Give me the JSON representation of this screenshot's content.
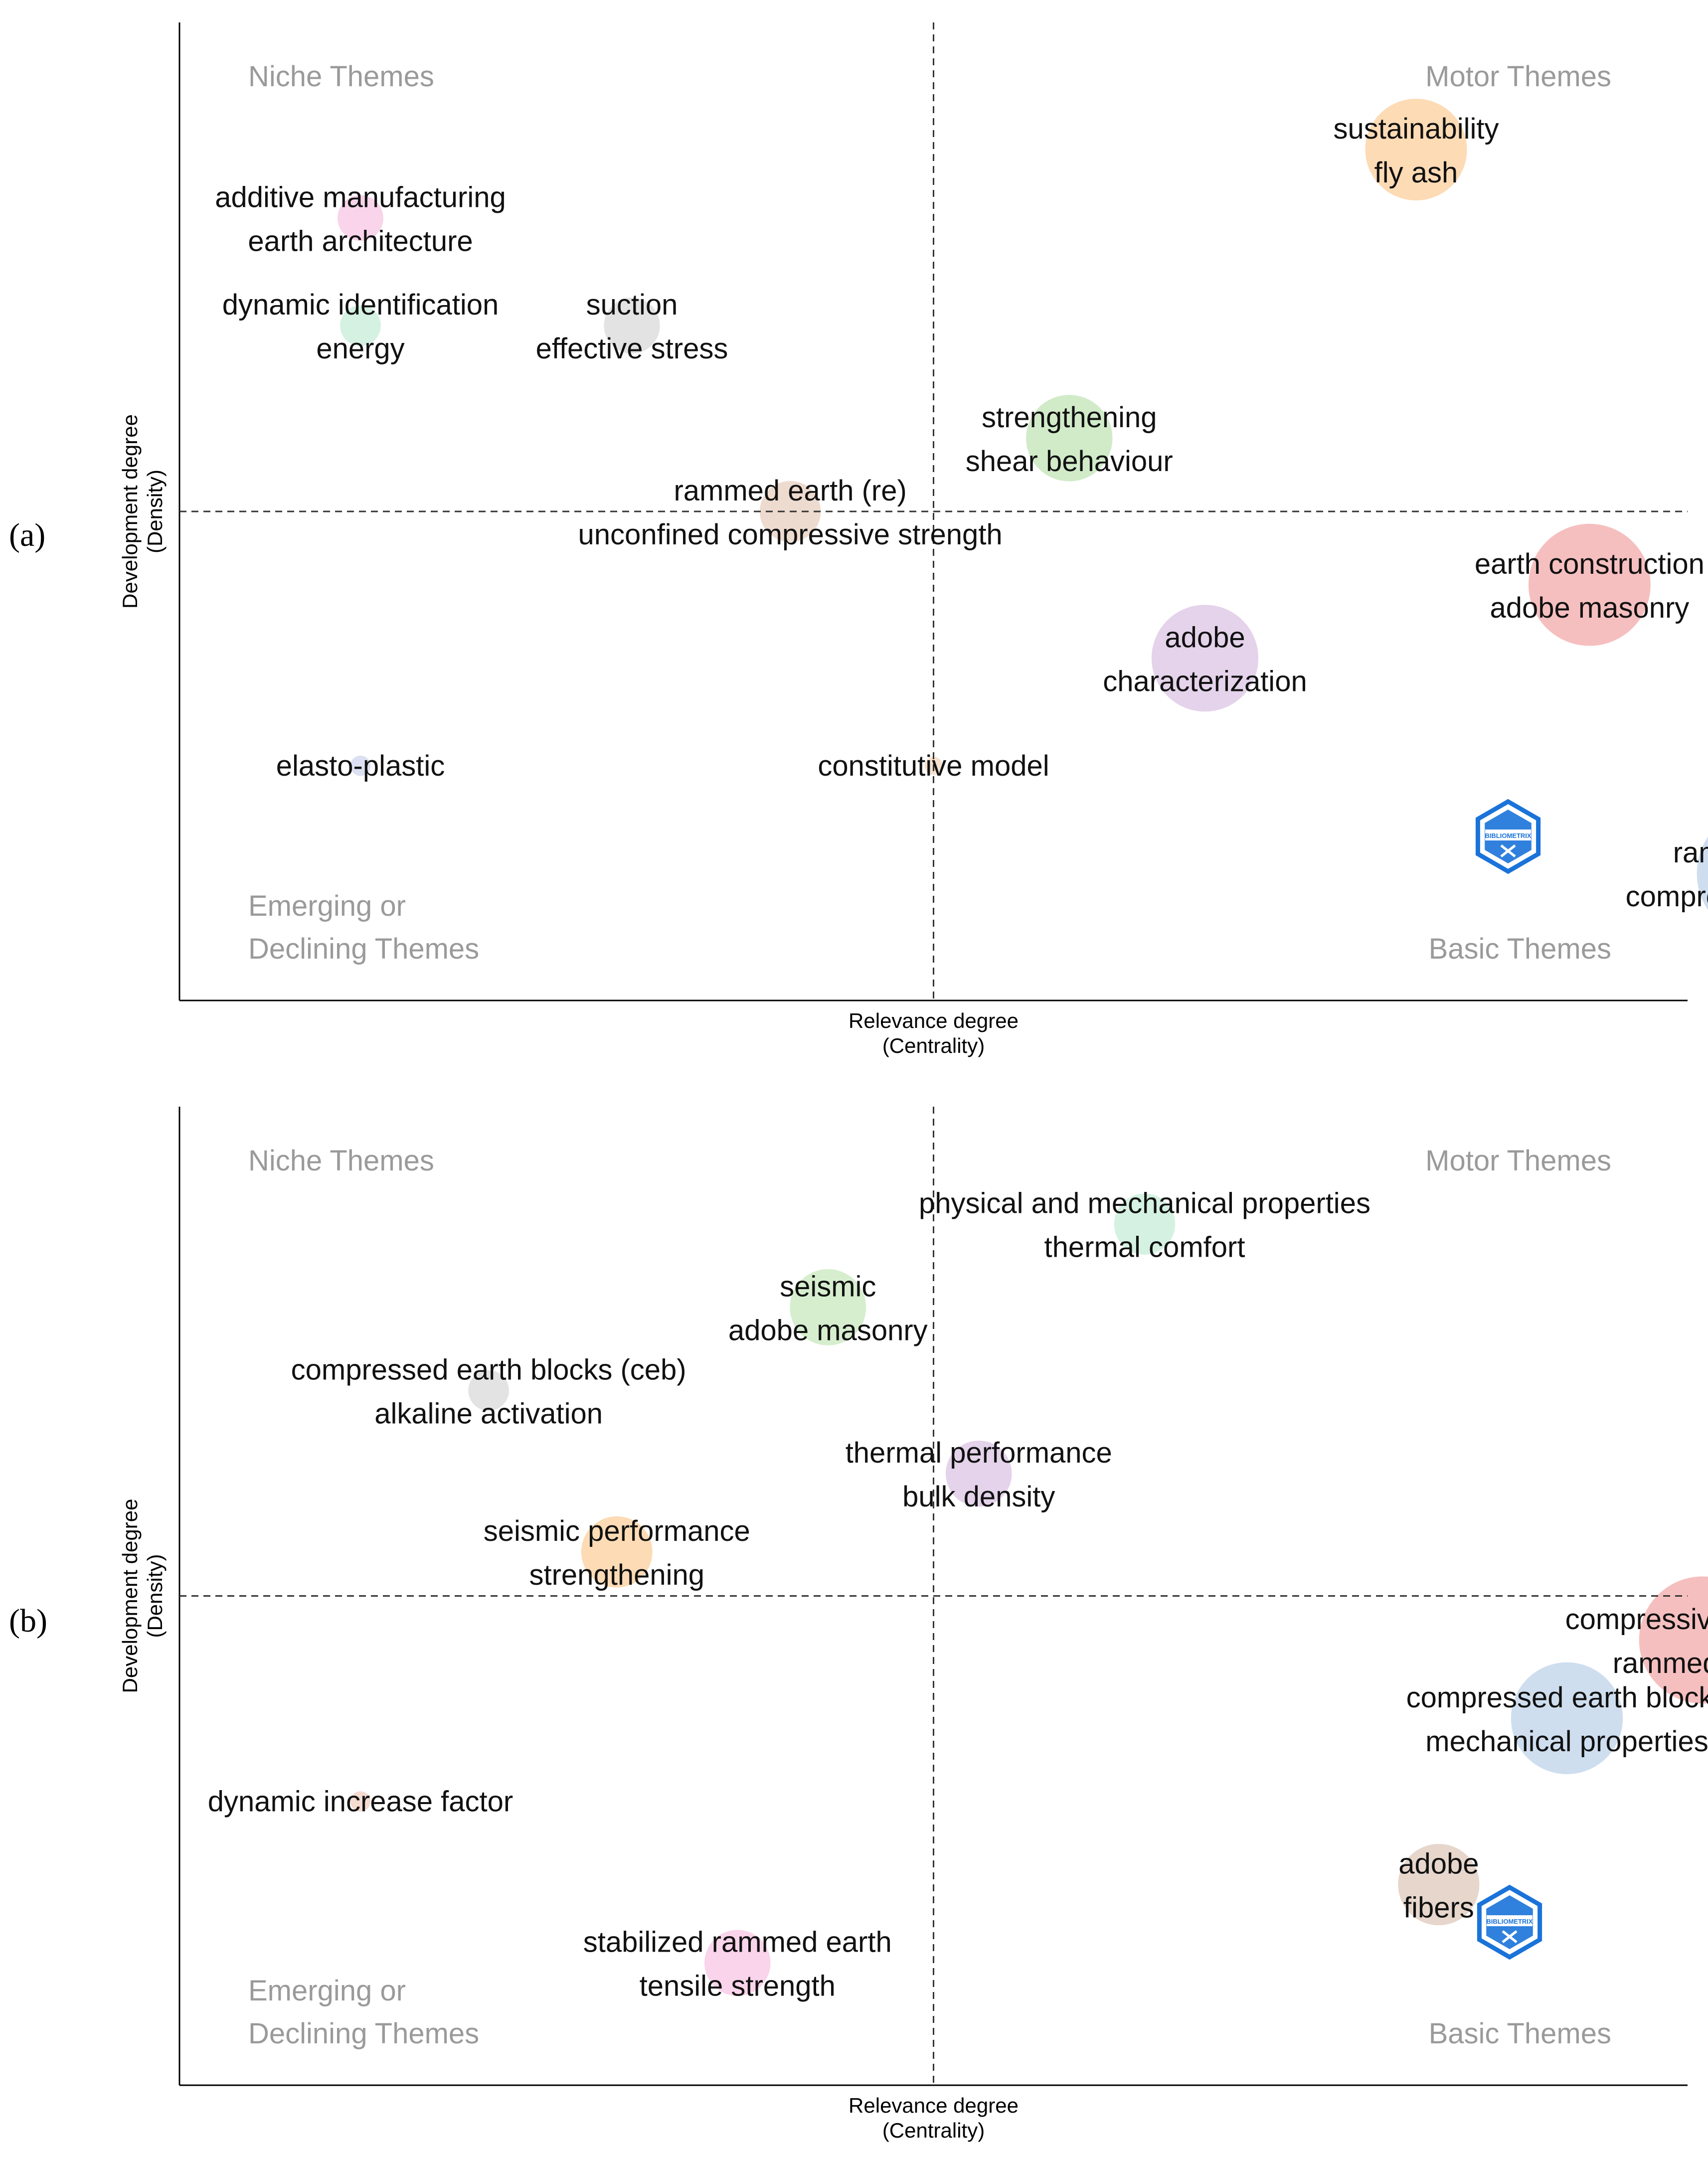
{
  "chart_data": [
    {
      "type": "scatter",
      "panel_label": "(a)",
      "xlabel": [
        "Relevance degree",
        "(Centrality)"
      ],
      "ylabel": [
        "Development degree",
        "(Density)"
      ],
      "quadrant_labels": {
        "top_left": [
          "Niche Themes"
        ],
        "top_right": [
          "Motor Themes"
        ],
        "bottom_left": [
          "Emerging or",
          "Declining Themes"
        ],
        "bottom_right": [
          "Basic Themes"
        ]
      },
      "clusters": [
        {
          "name": "sustainability",
          "labels": [
            "sustainability",
            "fly ash"
          ],
          "centrality": 1.64,
          "density": 0.74,
          "size": 2.0,
          "color": "#fdd5a8"
        },
        {
          "name": "additive manufacturing",
          "labels": [
            "additive manufacturing",
            "earth architecture"
          ],
          "centrality": 0.24,
          "density": 0.6,
          "size": 0.9,
          "color": "#f8cde6"
        },
        {
          "name": "dynamic identification",
          "labels": [
            "dynamic identification",
            "energy"
          ],
          "centrality": 0.24,
          "density": 0.38,
          "size": 0.8,
          "color": "#cdeedd"
        },
        {
          "name": "suction",
          "labels": [
            "suction",
            "effective stress"
          ],
          "centrality": 0.6,
          "density": 0.38,
          "size": 1.1,
          "color": "#dedede"
        },
        {
          "name": "strengthening",
          "labels": [
            "strengthening",
            "shear behaviour"
          ],
          "centrality": 1.18,
          "density": 0.15,
          "size": 1.7,
          "color": "#c9e7bf"
        },
        {
          "name": "rammed earth (re)",
          "labels": [
            "rammed earth (re)",
            "unconfined compressive strength"
          ],
          "centrality": 0.81,
          "density": 0.0,
          "size": 1.2,
          "color": "#ebd5c7"
        },
        {
          "name": "earth construction",
          "labels": [
            "earth construction",
            "adobe masonry"
          ],
          "centrality": 1.87,
          "density": -0.15,
          "size": 2.4,
          "color": "#f4b4b4"
        },
        {
          "name": "adobe",
          "labels": [
            "adobe",
            "characterization"
          ],
          "centrality": 1.36,
          "density": -0.3,
          "size": 2.1,
          "color": "#dfcbe6"
        },
        {
          "name": "elasto-plastic",
          "labels": [
            "elasto-plastic"
          ],
          "centrality": 0.24,
          "density": -0.52,
          "size": 0.4,
          "color": "#d7daf0"
        },
        {
          "name": "constitutive model",
          "labels": [
            "constitutive model"
          ],
          "centrality": 1.0,
          "density": -0.52,
          "size": 0.3,
          "color": "#f5dcc6"
        },
        {
          "name": "rammed earth",
          "labels": [
            "rammed earth",
            "compressive strength"
          ],
          "centrality": 2.1,
          "density": -0.74,
          "size": 2.6,
          "color": "#c6d8ec"
        }
      ]
    },
    {
      "type": "scatter",
      "panel_label": "(b)",
      "xlabel": [
        "Relevance degree",
        "(Centrality)"
      ],
      "ylabel": [
        "Development degree",
        "(Density)"
      ],
      "quadrant_labels": {
        "top_left": [
          "Niche Themes"
        ],
        "top_right": [
          "Motor Themes"
        ],
        "bottom_left": [
          "Emerging or",
          "Declining Themes"
        ],
        "bottom_right": [
          "Basic Themes"
        ]
      },
      "clusters": [
        {
          "name": "physical and mechanical properties",
          "labels": [
            "physical and mechanical properties",
            "thermal comfort"
          ],
          "centrality": 1.28,
          "density": 0.76,
          "size": 1.2,
          "color": "#cdeedd"
        },
        {
          "name": "seismic",
          "labels": [
            "seismic",
            "adobe masonry"
          ],
          "centrality": 0.86,
          "density": 0.59,
          "size": 1.5,
          "color": "#cfebc6"
        },
        {
          "name": "compressed earth blocks (ceb)",
          "labels": [
            "compressed earth blocks (ceb)",
            "alkaline activation"
          ],
          "centrality": 0.41,
          "density": 0.42,
          "size": 0.8,
          "color": "#dedede"
        },
        {
          "name": "thermal performance",
          "labels": [
            "thermal performance",
            "bulk density"
          ],
          "centrality": 1.06,
          "density": 0.25,
          "size": 1.3,
          "color": "#dfcbe6"
        },
        {
          "name": "seismic performance",
          "labels": [
            "seismic performance",
            "strengthening"
          ],
          "centrality": 0.58,
          "density": 0.09,
          "size": 1.4,
          "color": "#fdd5a8"
        },
        {
          "name": "compressive strength",
          "labels": [
            "compressive strength",
            "rammed earth"
          ],
          "centrality": 2.02,
          "density": -0.09,
          "size": 2.5,
          "color": "#f4b4b4"
        },
        {
          "name": "compressed earth blocks",
          "labels": [
            "compressed earth blocks",
            "mechanical properties"
          ],
          "centrality": 1.84,
          "density": -0.25,
          "size": 2.2,
          "color": "#c6d8ec"
        },
        {
          "name": "dynamic increase factor",
          "labels": [
            "dynamic increase factor"
          ],
          "centrality": 0.24,
          "density": -0.42,
          "size": 0.4,
          "color": "#f5d5c9"
        },
        {
          "name": "adobe",
          "labels": [
            "adobe",
            "fibers"
          ],
          "centrality": 1.67,
          "density": -0.59,
          "size": 1.6,
          "color": "#e2cfc3"
        },
        {
          "name": "stabilized rammed earth",
          "labels": [
            "stabilized rammed earth",
            "tensile strength"
          ],
          "centrality": 0.74,
          "density": -0.75,
          "size": 1.3,
          "color": "#f8cde6"
        }
      ]
    }
  ],
  "logo": {
    "text": "BIBLIOMETRIX",
    "color": "#1a73d9"
  },
  "axes": {
    "x_range": [
      0,
      2.0
    ],
    "y_range": [
      -1.0,
      1.0
    ],
    "x_divider": 1.0,
    "y_divider": 0.0
  }
}
